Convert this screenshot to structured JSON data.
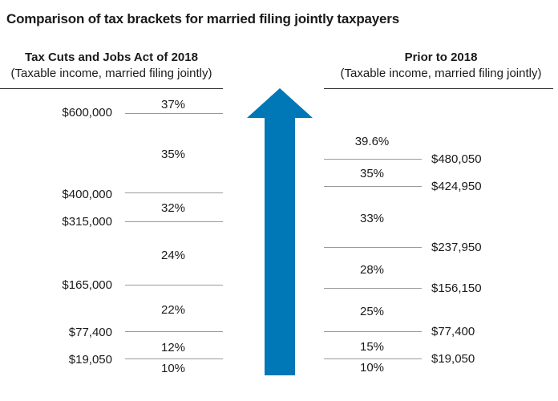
{
  "title": "Comparison of tax brackets for married filing jointly taxpayers",
  "left": {
    "heading": "Tax Cuts and Jobs Act of 2018",
    "subheading": "(Taxable income, married filing jointly)",
    "thresholds": [
      "$600,000",
      "$400,000",
      "$315,000",
      "$165,000",
      "$77,400",
      "$19,050"
    ],
    "rates": [
      "37%",
      "35%",
      "32%",
      "24%",
      "22%",
      "12%",
      "10%"
    ]
  },
  "right": {
    "heading": "Prior to 2018",
    "subheading": "(Taxable income, married filing jointly)",
    "thresholds": [
      "$480,050",
      "$424,950",
      "$237,950",
      "$156,150",
      "$77,400",
      "$19,050"
    ],
    "rates": [
      "39.6%",
      "35%",
      "33%",
      "28%",
      "25%",
      "15%",
      "10%"
    ]
  },
  "colors": {
    "arrow": "#0077b6",
    "line": "#9a9a9a"
  },
  "icons": {
    "arrow": "up-arrow-icon"
  }
}
